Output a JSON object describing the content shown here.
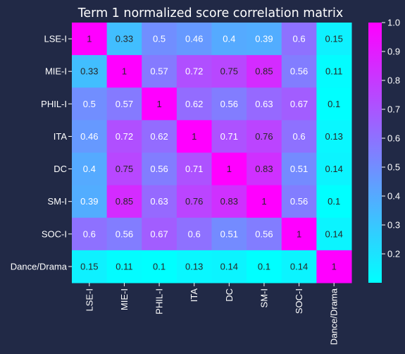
{
  "chart_data": {
    "type": "heatmap",
    "title": "Term 1 normalized score correlation matrix",
    "rows": [
      "LSE-I",
      "MIE-I",
      "PHIL-I",
      "ITA",
      "DC",
      "SM-I",
      "SOC-I",
      "Dance/Drama"
    ],
    "columns": [
      "LSE-I",
      "MIE-I",
      "PHIL-I",
      "ITA",
      "DC",
      "SM-I",
      "SOC-I",
      "Dance/Drama"
    ],
    "values": [
      [
        1,
        0.33,
        0.5,
        0.46,
        0.4,
        0.39,
        0.6,
        0.15
      ],
      [
        0.33,
        1,
        0.57,
        0.72,
        0.75,
        0.85,
        0.56,
        0.11
      ],
      [
        0.5,
        0.57,
        1,
        0.62,
        0.56,
        0.63,
        0.67,
        0.1
      ],
      [
        0.46,
        0.72,
        0.62,
        1,
        0.71,
        0.76,
        0.6,
        0.13
      ],
      [
        0.4,
        0.75,
        0.56,
        0.71,
        1,
        0.83,
        0.51,
        0.14
      ],
      [
        0.39,
        0.85,
        0.63,
        0.76,
        0.83,
        1,
        0.56,
        0.1
      ],
      [
        0.6,
        0.56,
        0.67,
        0.6,
        0.51,
        0.56,
        1,
        0.14
      ],
      [
        0.15,
        0.11,
        0.1,
        0.13,
        0.14,
        0.1,
        0.14,
        1
      ]
    ],
    "colorscale": {
      "name": "cool",
      "low": "#00ffff",
      "high": "#ff00ff",
      "vmin": 0.1,
      "vmax": 1.0
    },
    "colorbar": {
      "ticks": [
        0.2,
        0.3,
        0.4,
        0.5,
        0.6,
        0.7,
        0.8,
        0.9,
        1.0
      ],
      "tick_labels": [
        "0.2",
        "0.3",
        "0.4",
        "0.5",
        "0.6",
        "0.7",
        "0.8",
        "0.9",
        "1.0"
      ]
    },
    "colors": {
      "background": "#212946",
      "text": "#ffffff",
      "dark_label": "#262626",
      "light_label": "#ffffff"
    }
  }
}
